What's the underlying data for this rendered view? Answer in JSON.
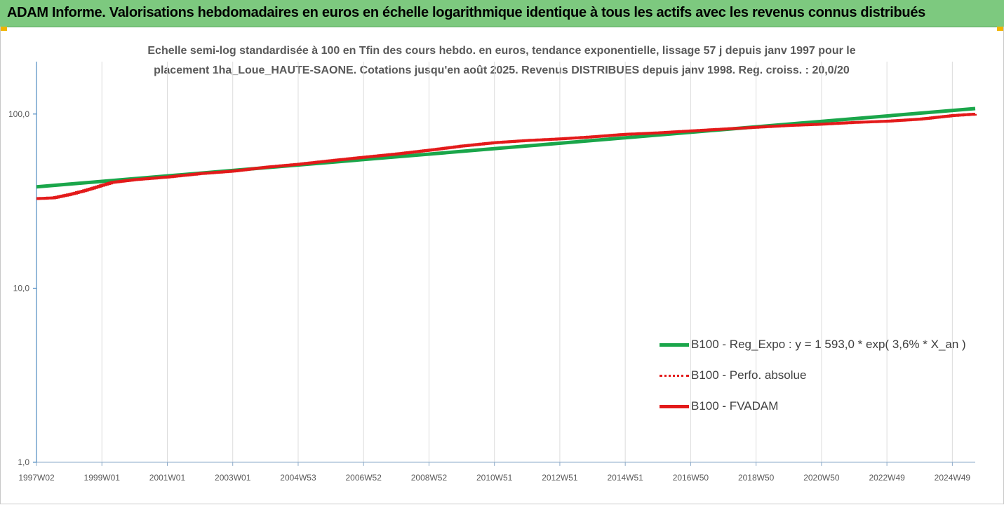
{
  "header": {
    "title": "ADAM Informe. Valorisations hebdomadaires en euros en échelle logarithmique identique à tous les actifs avec les revenus connus distribués"
  },
  "chart_data": {
    "type": "line",
    "subtitle_line1": "Echelle semi-log standardisée à 100 en Tfin des cours hebdo. en euros, tendance exponentielle, lissage 57 j depuis janv 1997 pour le",
    "subtitle_line2": "placement 1ha_Loue_HAUTE-SAONE. Cotations jusqu'en août 2025.  Revenus DISTRIBUES depuis janv 1998.  Reg. croiss. : 20,0/20",
    "y_scale": "log",
    "ylim": [
      1,
      200
    ],
    "y_ticks": [
      1,
      10,
      100
    ],
    "y_tick_labels": [
      "1,0",
      "10,0",
      "100,0"
    ],
    "xlim": [
      1997.0,
      2025.7
    ],
    "x_ticks": [
      1997.0,
      1999.0,
      2001.0,
      2003.0,
      2005.0,
      2007.0,
      2009.0,
      2011.0,
      2013.0,
      2015.0,
      2017.0,
      2019.0,
      2021.0,
      2023.0,
      2025.0
    ],
    "x_tick_labels": [
      "1997W02",
      "1999W01",
      "2001W01",
      "2003W01",
      "2004W53",
      "2006W52",
      "2008W52",
      "2010W51",
      "2012W51",
      "2014W51",
      "2016W50",
      "2018W50",
      "2020W50",
      "2022W49",
      "2024W49"
    ],
    "grid": "vertical",
    "legend_position": "right",
    "series": [
      {
        "name": "B100 - Reg_Expo : y = 1 593,0 * exp( 3,6% *  X_an )",
        "color": "#1aa64a",
        "style": "solid",
        "x": [
          1997.0,
          2025.7
        ],
        "y": [
          38.2,
          107.5
        ]
      },
      {
        "name": "B100 - Perfo. absolue",
        "color": "#e31a1a",
        "style": "dotted",
        "x": [],
        "y": []
      },
      {
        "name": "B100 - FVADAM",
        "color": "#e31a1a",
        "style": "solid",
        "x": [
          1997.0,
          1997.5,
          1998.0,
          1998.5,
          1999.0,
          1999.3,
          2000.0,
          2001.0,
          2002.0,
          2003.0,
          2004.0,
          2005.0,
          2006.0,
          2007.0,
          2008.0,
          2009.0,
          2010.0,
          2011.0,
          2012.0,
          2013.0,
          2014.0,
          2015.0,
          2016.0,
          2017.0,
          2018.0,
          2019.0,
          2020.0,
          2021.0,
          2022.0,
          2023.0,
          2024.0,
          2025.0,
          2025.7
        ],
        "y": [
          32.7,
          33.0,
          34.5,
          36.5,
          39.0,
          40.5,
          42.0,
          43.5,
          45.5,
          47.0,
          49.5,
          51.5,
          54.0,
          56.5,
          59.0,
          62.0,
          65.5,
          68.5,
          70.5,
          72.0,
          74.0,
          76.5,
          78.0,
          80.0,
          82.0,
          84.0,
          86.0,
          87.5,
          89.5,
          91.0,
          93.5,
          98.0,
          100.0
        ]
      }
    ]
  }
}
